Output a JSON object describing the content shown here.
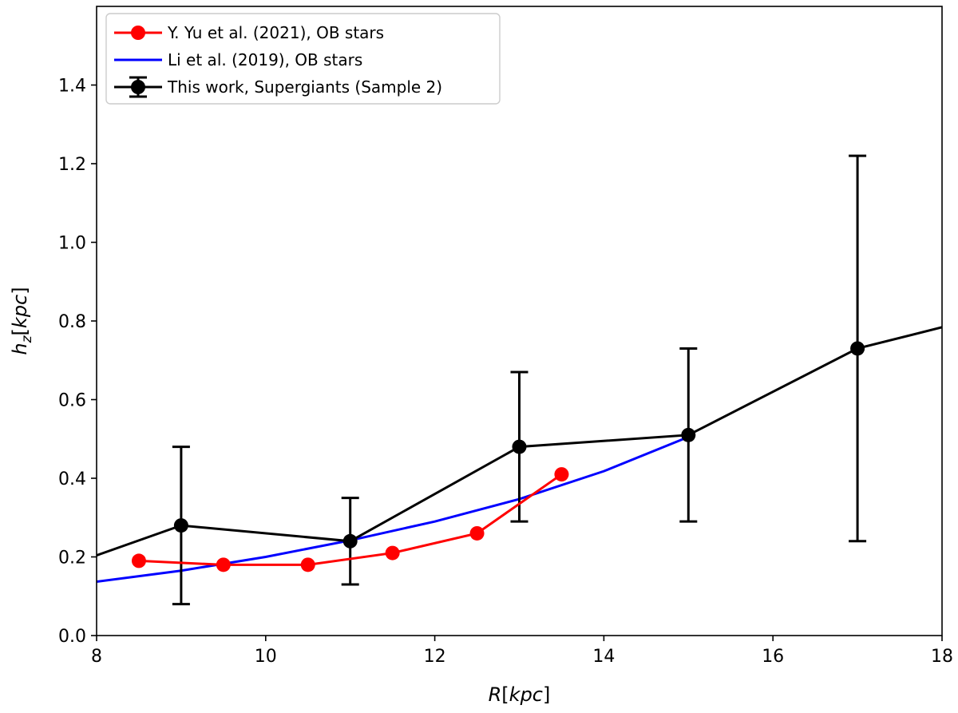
{
  "chart_data": {
    "type": "line",
    "title": "",
    "xlabel": {
      "main": "R",
      "unit": "kpc"
    },
    "ylabel": {
      "main": "h",
      "sub": "z",
      "unit": "kpc"
    },
    "xlim": [
      8,
      18
    ],
    "ylim": [
      0.0,
      1.6
    ],
    "xticks": [
      8,
      10,
      12,
      14,
      16,
      18
    ],
    "xtick_labels": [
      "8",
      "10",
      "12",
      "14",
      "16",
      "18"
    ],
    "yticks": [
      0.0,
      0.2,
      0.4,
      0.6,
      0.8,
      1.0,
      1.2,
      1.4
    ],
    "ytick_labels": [
      "0.0",
      "0.2",
      "0.4",
      "0.6",
      "0.8",
      "1.0",
      "1.2",
      "1.4"
    ],
    "grid": false,
    "legend_position": "top-left",
    "series": [
      {
        "name": "Y. Yu et al. (2021), OB stars",
        "color": "#ff0000",
        "kind": "line-markers",
        "x": [
          8.5,
          9.5,
          10.5,
          11.5,
          12.5,
          13.5
        ],
        "y": [
          0.19,
          0.18,
          0.18,
          0.21,
          0.26,
          0.41
        ]
      },
      {
        "name": "Li et al. (2019), OB stars",
        "color": "#0000ff",
        "kind": "line",
        "x": [
          8.0,
          9.0,
          10.0,
          11.0,
          12.0,
          13.0,
          14.0,
          15.0
        ],
        "y": [
          0.137,
          0.165,
          0.2,
          0.242,
          0.29,
          0.347,
          0.418,
          0.505
        ]
      },
      {
        "name": "This work, Supergiants (Sample 2)",
        "color": "#000000",
        "kind": "errorbar",
        "x": [
          9,
          11,
          13,
          15,
          17
        ],
        "y": [
          0.28,
          0.24,
          0.48,
          0.51,
          0.73
        ],
        "err_low": [
          0.08,
          0.13,
          0.29,
          0.29,
          0.24
        ],
        "err_high": [
          0.48,
          0.35,
          0.67,
          0.73,
          1.22
        ],
        "extension": {
          "x_start": 8.0,
          "y_start": 0.204,
          "x_end": 18.0,
          "y_end": 0.784
        }
      }
    ]
  }
}
